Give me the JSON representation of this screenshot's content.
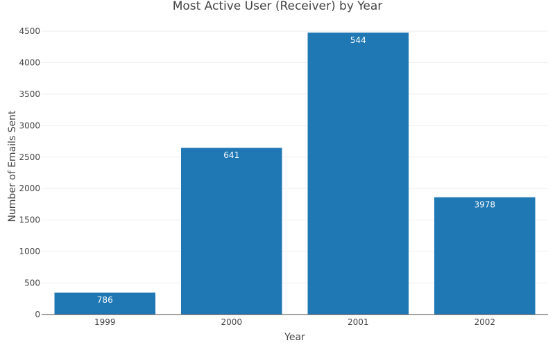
{
  "chart_data": {
    "type": "bar",
    "title": "Most Active User (Receiver) by Year",
    "xlabel": "Year",
    "ylabel": "Number of Emails Sent",
    "categories": [
      "1999",
      "2000",
      "2001",
      "2002"
    ],
    "values": [
      350,
      2650,
      4480,
      1865
    ],
    "bar_labels": [
      "786",
      "641",
      "544",
      "3978"
    ],
    "ylim": [
      0,
      4700
    ],
    "yticks": [
      0,
      500,
      1000,
      1500,
      2000,
      2500,
      3000,
      3500,
      4000,
      4500
    ],
    "grid": true,
    "bar_color": "#1f77b4",
    "label_color": "#ffffff"
  }
}
